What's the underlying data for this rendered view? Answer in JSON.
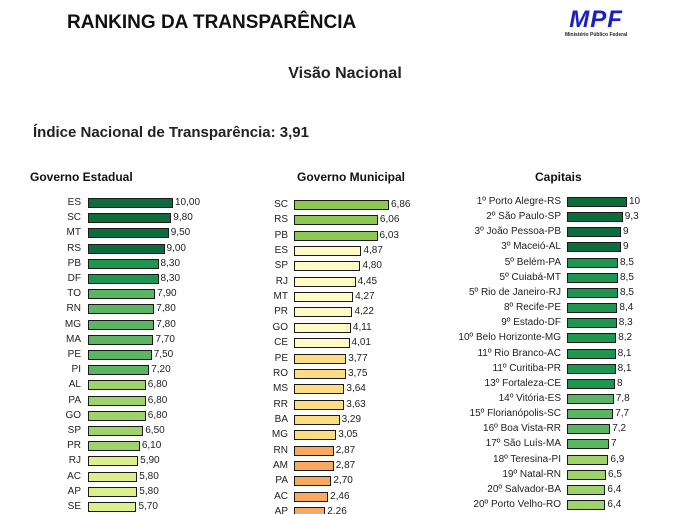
{
  "header": {
    "title": "RANKING DA TRANSPARÊNCIA",
    "logo_text": "MPF",
    "logo_subtext": "Ministério Público Federal",
    "subtitle": "Visão Nacional",
    "index_text": "Índice Nacional de Transparência: 3,91"
  },
  "chart_data": [
    {
      "type": "bar",
      "orientation": "horizontal",
      "title": "Governo Estadual",
      "categories": [
        "ES",
        "SC",
        "MT",
        "RS",
        "PB",
        "DF",
        "TO",
        "RN",
        "MG",
        "MA",
        "PE",
        "PI",
        "AL",
        "PA",
        "GO",
        "SP",
        "PR",
        "RJ",
        "AC",
        "AP",
        "SE"
      ],
      "values": [
        10.0,
        9.8,
        9.5,
        9.0,
        8.3,
        8.3,
        7.9,
        7.8,
        7.8,
        7.7,
        7.5,
        7.2,
        6.8,
        6.8,
        6.8,
        6.5,
        6.1,
        5.9,
        5.8,
        5.8,
        5.7
      ],
      "labels": [
        "10,00",
        "9,80",
        "9,50",
        "9,00",
        "8,30",
        "8,30",
        "7,90",
        "7,80",
        "7,80",
        "7,70",
        "7,50",
        "7,20",
        "6,80",
        "6,80",
        "6,80",
        "6,50",
        "6,10",
        "5,90",
        "5,80",
        "5,80",
        "5,70"
      ],
      "colors": [
        "#0e6b3b",
        "#0e6b3b",
        "#0e6b3b",
        "#0e6b3b",
        "#1f9650",
        "#1f9650",
        "#5cb562",
        "#5cb562",
        "#5cb562",
        "#5cb562",
        "#5cb562",
        "#5cb562",
        "#9ed26a",
        "#9ed26a",
        "#9ed26a",
        "#9ed26a",
        "#9ed26a",
        "#dbef8c",
        "#dbef8c",
        "#dbef8c",
        "#dbef8c"
      ]
    },
    {
      "type": "bar",
      "orientation": "horizontal",
      "title": "Governo Municipal",
      "categories": [
        "SC",
        "RS",
        "PB",
        "ES",
        "SP",
        "RJ",
        "MT",
        "PR",
        "GO",
        "CE",
        "PE",
        "RO",
        "MS",
        "RR",
        "BA",
        "MG",
        "RN",
        "AM",
        "PA",
        "AC",
        "AP"
      ],
      "values": [
        6.86,
        6.06,
        6.03,
        4.87,
        4.8,
        4.45,
        4.27,
        4.22,
        4.11,
        4.01,
        3.77,
        3.75,
        3.64,
        3.63,
        3.29,
        3.05,
        2.87,
        2.87,
        2.7,
        2.46,
        2.26
      ],
      "labels": [
        "6,86",
        "6,06",
        "6,03",
        "4,87",
        "4,80",
        "4,45",
        "4,27",
        "4,22",
        "4,11",
        "4,01",
        "3,77",
        "3,75",
        "3,64",
        "3,63",
        "3,29",
        "3,05",
        "2,87",
        "2,87",
        "2,70",
        "2,46",
        "2,26"
      ],
      "colors": [
        "#8dc852",
        "#8dc852",
        "#8dc852",
        "#fffbc4",
        "#fffbc4",
        "#fffbc4",
        "#fffbc4",
        "#fffbc4",
        "#fffbc4",
        "#fffbc4",
        "#fddc86",
        "#fddc86",
        "#fddc86",
        "#fddc86",
        "#fddc86",
        "#fddc86",
        "#f9a860",
        "#f9a860",
        "#f9a860",
        "#f9a860",
        "#f9a860"
      ]
    },
    {
      "type": "bar",
      "orientation": "horizontal",
      "title": "Capitais",
      "categories": [
        "1º Porto Alegre-RS",
        "2º São Paulo-SP",
        "3º João Pessoa-PB",
        "3º Maceió-AL",
        "5º Belém-PA",
        "5º Cuiabá-MT",
        "5º Rio de Janeiro-RJ",
        "8º Recife-PE",
        "9º Estado-DF",
        "10º Belo Horizonte-MG",
        "11º Rio Branco-AC",
        "11º Curitiba-PR",
        "13º Fortaleza-CE",
        "14º Vitória-ES",
        "15º Florianópolis-SC",
        "16º Boa Vista-RR",
        "17º São Luís-MA",
        "18º Teresina-PI",
        "19º Natal-RN",
        "20º Salvador-BA",
        "20º Porto Velho-RO"
      ],
      "values": [
        10,
        9.3,
        9,
        9,
        8.5,
        8.5,
        8.5,
        8.4,
        8.3,
        8.2,
        8.1,
        8.1,
        8,
        7.8,
        7.7,
        7.2,
        7,
        6.9,
        6.5,
        6.4,
        6.4
      ],
      "labels": [
        "10",
        "9,3",
        "9",
        "9",
        "8,5",
        "8,5",
        "8,5",
        "8,4",
        "8,3",
        "8,2",
        "8,1",
        "8,1",
        "8",
        "7,8",
        "7,7",
        "7,2",
        "7",
        "6,9",
        "6,5",
        "6,4",
        "6,4"
      ],
      "colors": [
        "#0e6b3b",
        "#0e6b3b",
        "#0e6b3b",
        "#0e6b3b",
        "#1f9650",
        "#1f9650",
        "#1f9650",
        "#1f9650",
        "#1f9650",
        "#1f9650",
        "#1f9650",
        "#1f9650",
        "#1f9650",
        "#5cb562",
        "#5cb562",
        "#5cb562",
        "#5cb562",
        "#9ed26a",
        "#9ed26a",
        "#9ed26a",
        "#9ed26a"
      ]
    }
  ]
}
